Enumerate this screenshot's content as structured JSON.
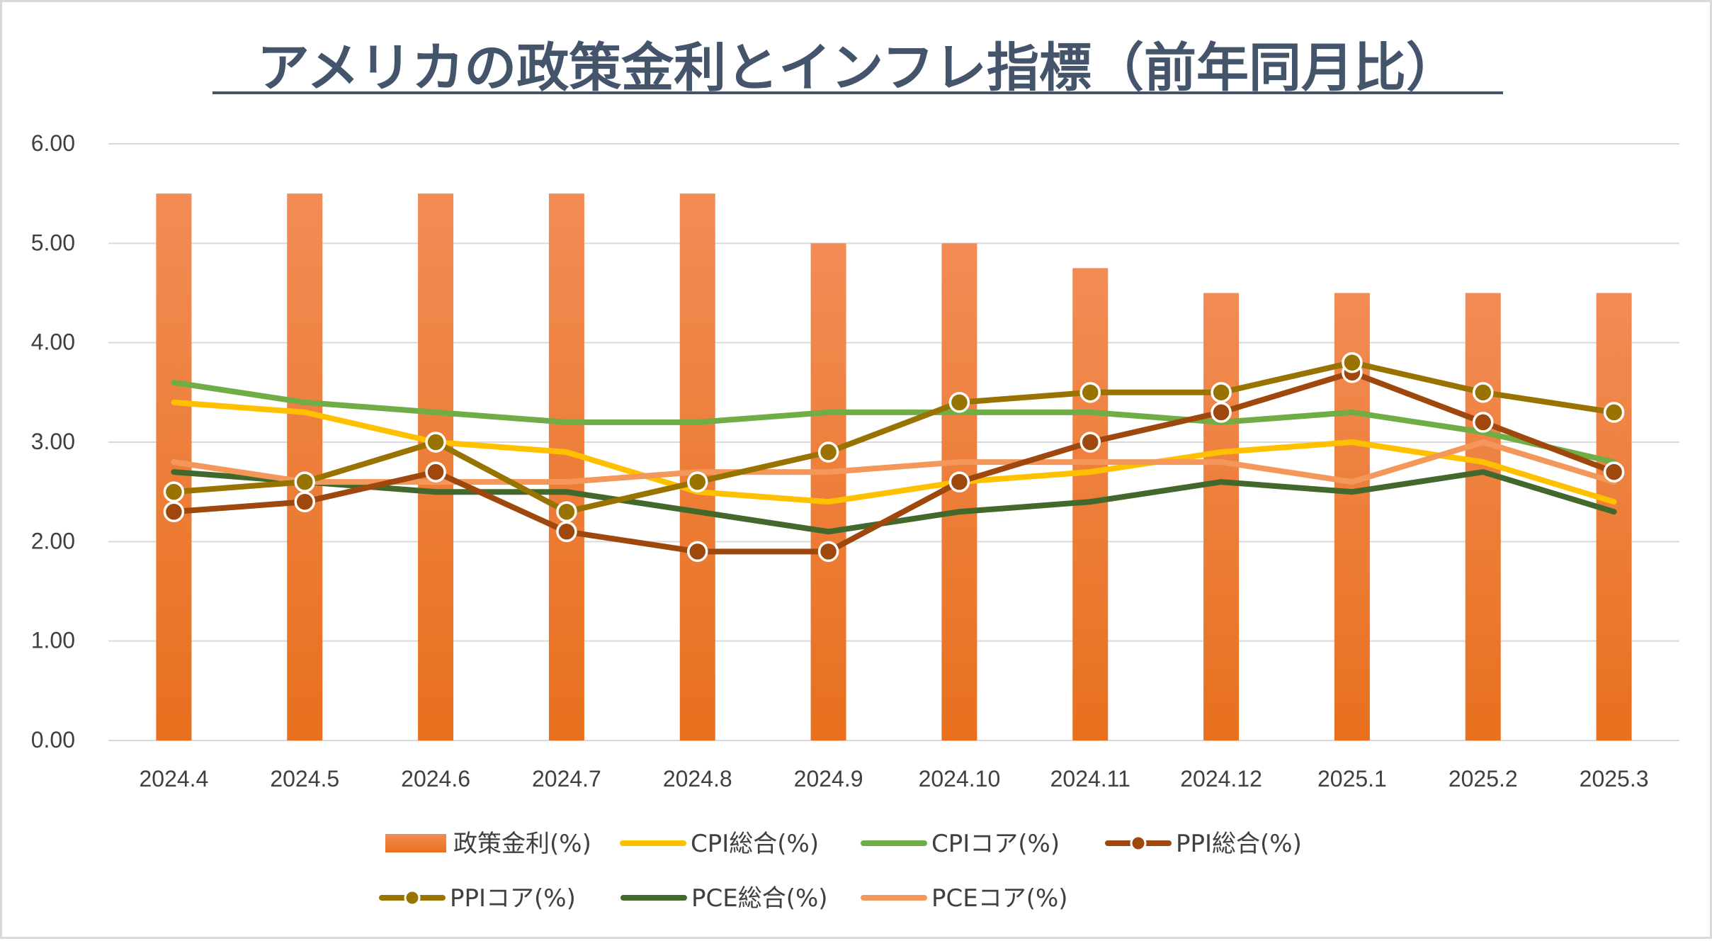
{
  "chart_data": {
    "type": "bar",
    "title": "アメリカの政策金利とインフレ指標（前年同月比）",
    "categories": [
      "2024.4",
      "2024.5",
      "2024.6",
      "2024.7",
      "2024.8",
      "2024.9",
      "2024.10",
      "2024.11",
      "2024.12",
      "2025.1",
      "2025.2",
      "2025.3"
    ],
    "ylim": [
      0,
      6
    ],
    "y_ticks": [
      "0.00",
      "1.00",
      "2.00",
      "3.00",
      "4.00",
      "5.00",
      "6.00"
    ],
    "grid": true,
    "legend_position": "bottom",
    "series": [
      {
        "name": "政策金利(%)",
        "type": "bar",
        "color": "#ED7D31",
        "values": [
          5.5,
          5.5,
          5.5,
          5.5,
          5.5,
          5.0,
          5.0,
          4.75,
          4.5,
          4.5,
          4.5,
          4.5
        ]
      },
      {
        "name": "CPI総合(%)",
        "type": "line",
        "color": "#FFC000",
        "marker": false,
        "values": [
          3.4,
          3.3,
          3.0,
          2.9,
          2.5,
          2.4,
          2.6,
          2.7,
          2.9,
          3.0,
          2.8,
          2.4
        ]
      },
      {
        "name": "CPIコア(%)",
        "type": "line",
        "color": "#70AD47",
        "marker": false,
        "values": [
          3.6,
          3.4,
          3.3,
          3.2,
          3.2,
          3.3,
          3.3,
          3.3,
          3.2,
          3.3,
          3.1,
          2.8
        ]
      },
      {
        "name": "PPI総合(%)",
        "type": "line",
        "color": "#9E480E",
        "marker": true,
        "values": [
          2.3,
          2.4,
          2.7,
          2.1,
          1.9,
          1.9,
          2.6,
          3.0,
          3.3,
          3.7,
          3.2,
          2.7
        ]
      },
      {
        "name": "PPIコア(%)",
        "type": "line",
        "color": "#997300",
        "marker": true,
        "values": [
          2.5,
          2.6,
          3.0,
          2.3,
          2.6,
          2.9,
          3.4,
          3.5,
          3.5,
          3.8,
          3.5,
          3.3
        ]
      },
      {
        "name": "PCE総合(%)",
        "type": "line",
        "color": "#43682B",
        "marker": false,
        "values": [
          2.7,
          2.6,
          2.5,
          2.5,
          2.3,
          2.1,
          2.3,
          2.4,
          2.6,
          2.5,
          2.7,
          2.3
        ]
      },
      {
        "name": "PCEコア(%)",
        "type": "line",
        "color": "#F4975A",
        "marker": false,
        "values": [
          2.8,
          2.6,
          2.6,
          2.6,
          2.7,
          2.7,
          2.8,
          2.8,
          2.8,
          2.6,
          3.0,
          2.6
        ]
      }
    ]
  }
}
